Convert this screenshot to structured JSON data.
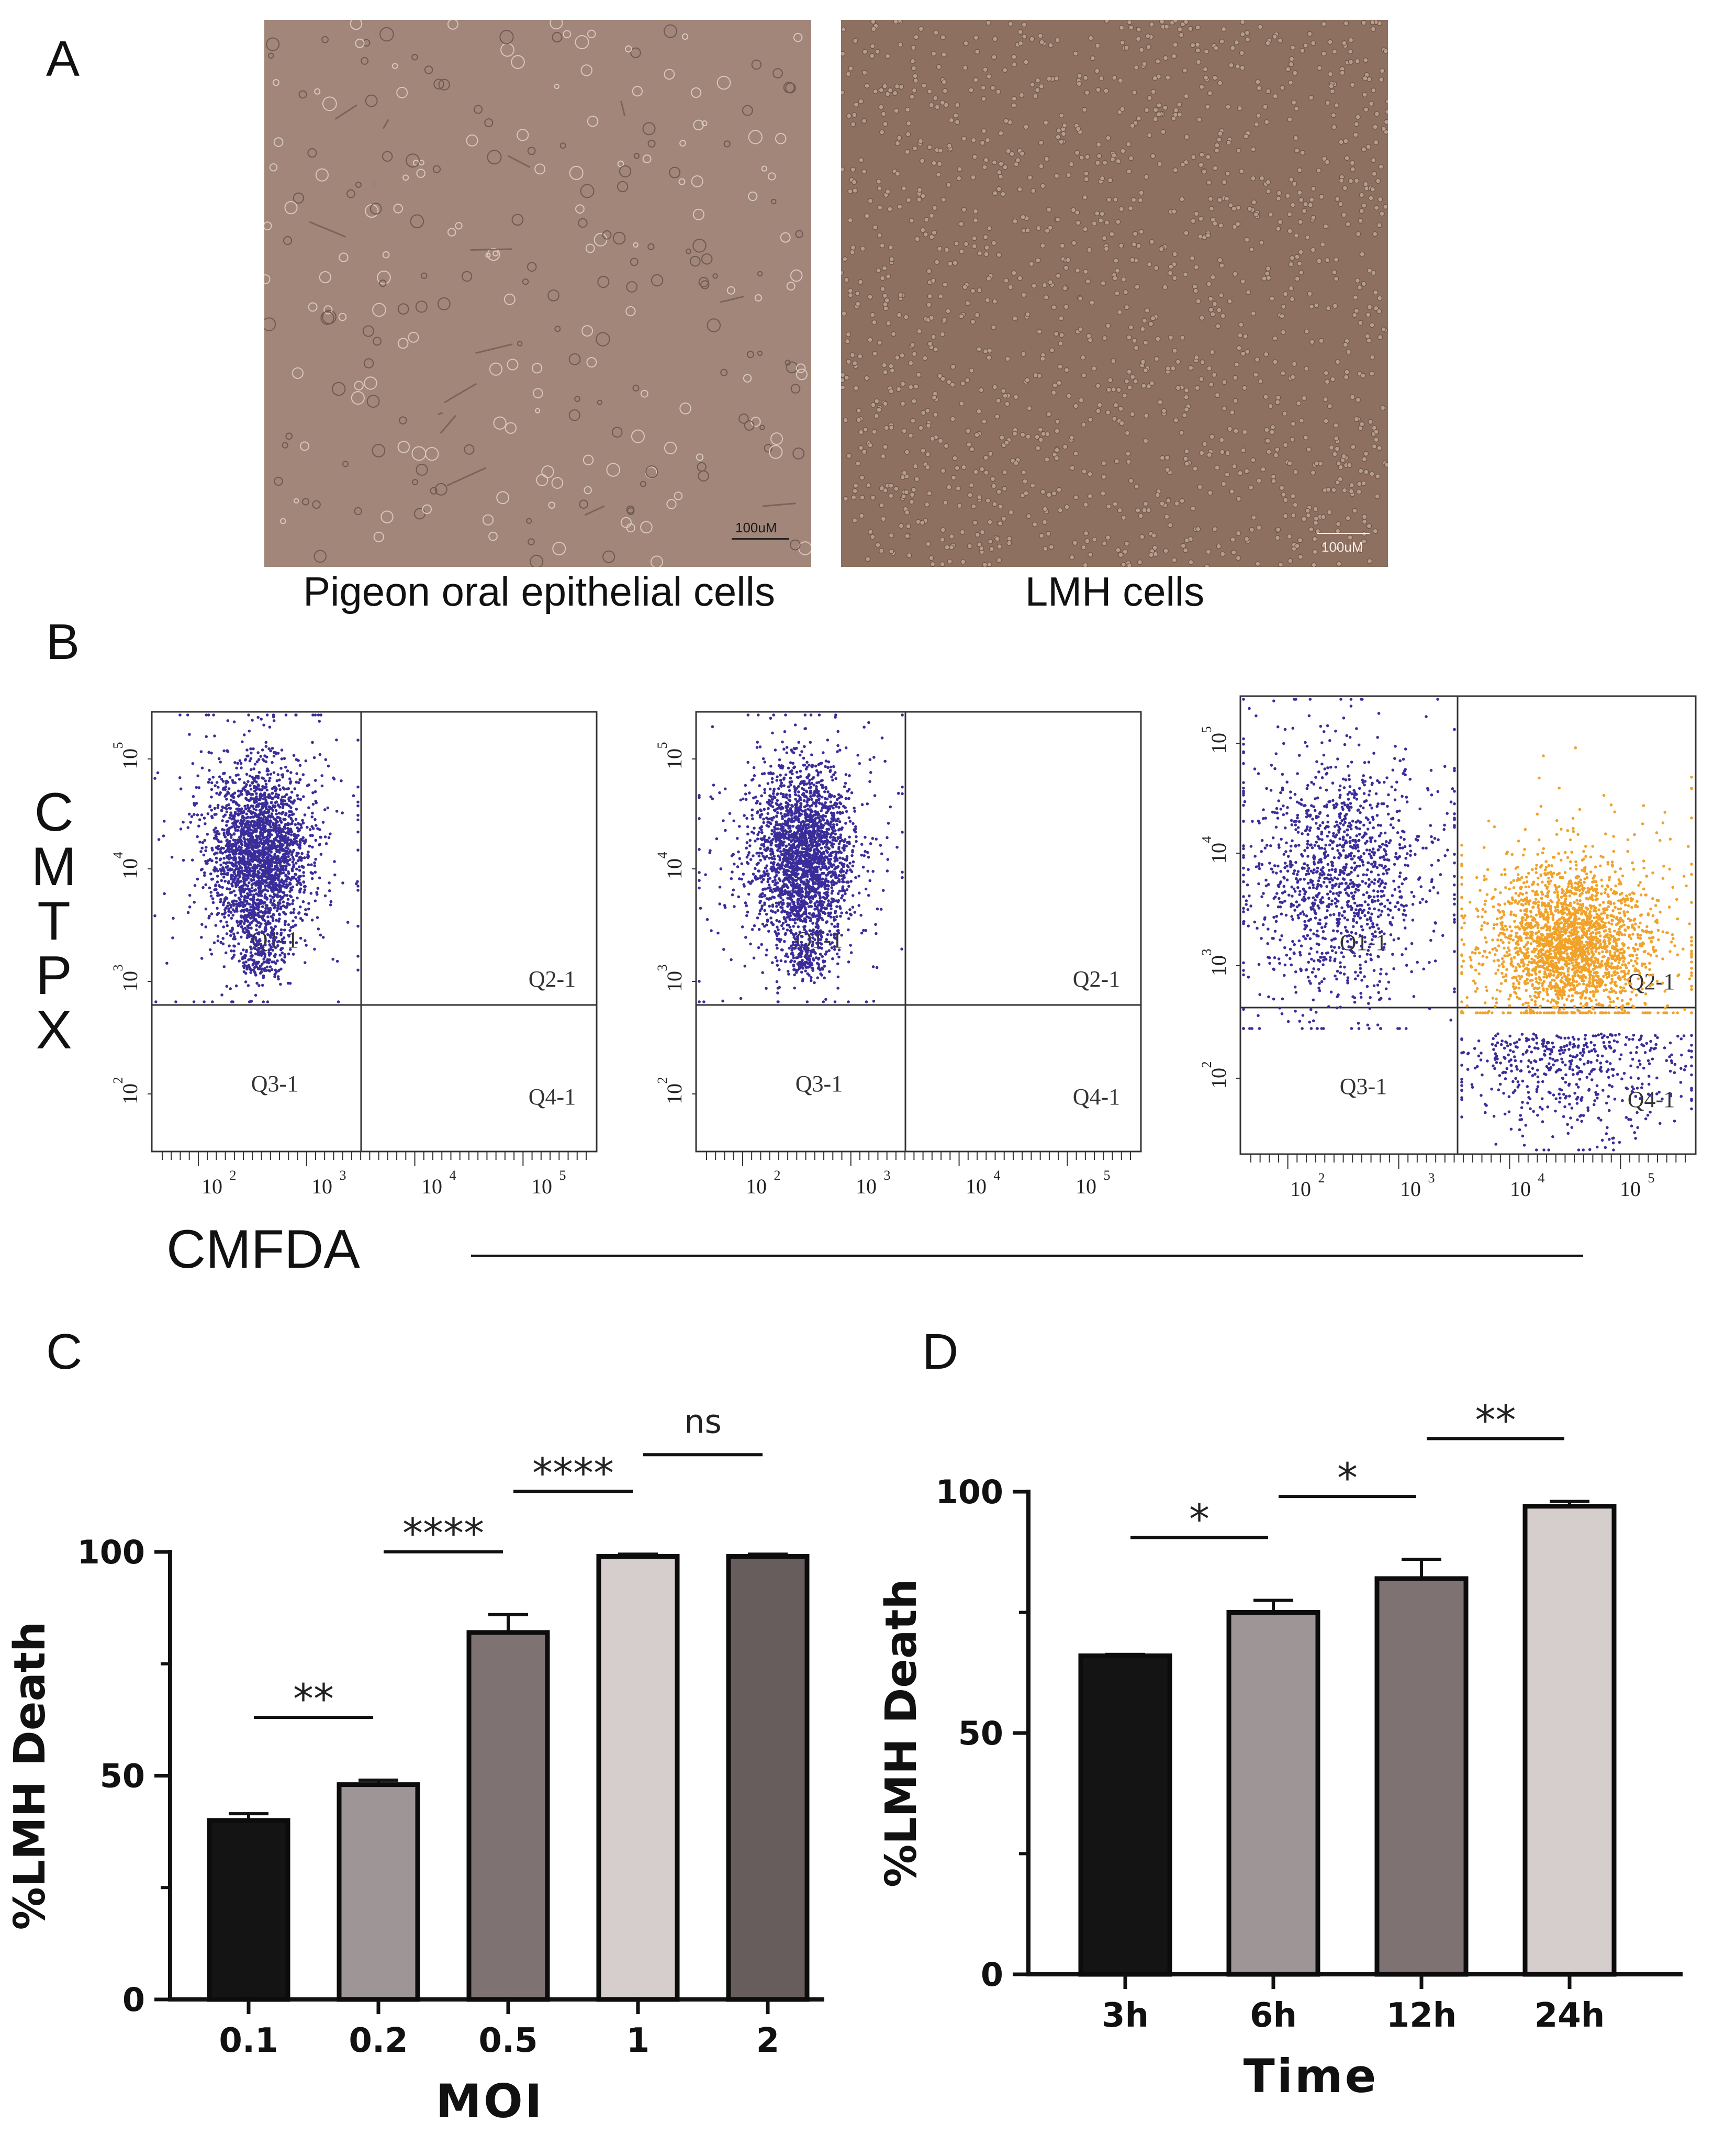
{
  "panels": {
    "a": "A",
    "b": "B",
    "c": "C",
    "d": "D"
  },
  "micrographs": [
    {
      "label": "Pigeon oral epithelial cells",
      "scale_bar": "100uM"
    },
    {
      "label": "LMH cells",
      "scale_bar": "100uM"
    }
  ],
  "flow": {
    "y_axis_label": [
      "C",
      "M",
      "T",
      "P",
      "X"
    ],
    "x_axis_label": "CMFDA",
    "y_ticks": [
      {
        "base": "10",
        "exp": "5"
      },
      {
        "base": "10",
        "exp": "4"
      },
      {
        "base": "10",
        "exp": "3"
      },
      {
        "base": "10",
        "exp": "2"
      }
    ],
    "x_ticks": [
      {
        "base": "10",
        "exp": "2"
      },
      {
        "base": "10",
        "exp": "3"
      },
      {
        "base": "10",
        "exp": "4"
      },
      {
        "base": "10",
        "exp": "5"
      }
    ],
    "quadrants": [
      "Q1-1",
      "Q2-1",
      "Q3-1",
      "Q4-1"
    ],
    "colors": {
      "population": "#3b2d99",
      "labeled": "#f0a22a"
    }
  },
  "chart_data": [
    {
      "type": "bar",
      "panel": "C",
      "categories": [
        "0.1",
        "0.2",
        "0.5",
        "1",
        "2"
      ],
      "values": [
        40,
        48,
        82,
        99,
        99
      ],
      "errors": [
        1.5,
        1,
        4,
        0.5,
        0.5
      ],
      "colors": [
        "#141414",
        "#9e9596",
        "#7e7272",
        "#d6cecc",
        "#675d5c"
      ],
      "xlabel": "MOI",
      "ylabel": "%LMH Death",
      "ylim": [
        0,
        100
      ],
      "yticks": [
        "0",
        "50",
        "100"
      ],
      "significance": [
        {
          "from": "0.1",
          "to": "0.2",
          "label": "**"
        },
        {
          "from": "0.2",
          "to": "0.5",
          "label": "****"
        },
        {
          "from": "0.5",
          "to": "1",
          "label": "****"
        },
        {
          "from": "1",
          "to": "2",
          "label": "ns"
        }
      ]
    },
    {
      "type": "bar",
      "panel": "D",
      "categories": [
        "3h",
        "6h",
        "12h",
        "24h"
      ],
      "values": [
        66,
        75,
        82,
        97
      ],
      "errors": [
        0.3,
        2.5,
        4,
        1
      ],
      "colors": [
        "#141414",
        "#9e9596",
        "#7e7272",
        "#d6cecc"
      ],
      "xlabel": "Time",
      "ylabel": "%LMH Death",
      "ylim": [
        0,
        100
      ],
      "yticks": [
        "0",
        "50",
        "100"
      ],
      "significance": [
        {
          "from": "3h",
          "to": "6h",
          "label": "*"
        },
        {
          "from": "6h",
          "to": "12h",
          "label": "*"
        },
        {
          "from": "12h",
          "to": "24h",
          "label": "**"
        }
      ]
    }
  ]
}
